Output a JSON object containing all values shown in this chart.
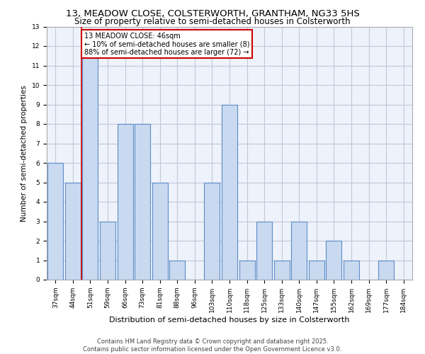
{
  "title1": "13, MEADOW CLOSE, COLSTERWORTH, GRANTHAM, NG33 5HS",
  "title2": "Size of property relative to semi-detached houses in Colsterworth",
  "xlabel": "Distribution of semi-detached houses by size in Colsterworth",
  "ylabel": "Number of semi-detached properties",
  "categories": [
    "37sqm",
    "44sqm",
    "51sqm",
    "59sqm",
    "66sqm",
    "73sqm",
    "81sqm",
    "88sqm",
    "96sqm",
    "103sqm",
    "110sqm",
    "118sqm",
    "125sqm",
    "133sqm",
    "140sqm",
    "147sqm",
    "155sqm",
    "162sqm",
    "169sqm",
    "177sqm",
    "184sqm"
  ],
  "values": [
    6,
    5,
    12,
    3,
    8,
    8,
    5,
    1,
    0,
    5,
    9,
    1,
    3,
    1,
    3,
    1,
    2,
    1,
    0,
    1,
    0
  ],
  "bar_color": "#c9d9f0",
  "bar_edge_color": "#5b8dc8",
  "grid_color": "#c0c8d8",
  "background_color": "#eef2fa",
  "annotation_box_color": "#ffffff",
  "annotation_border_color": "#cc0000",
  "annotation_text": "13 MEADOW CLOSE: 46sqm\n← 10% of semi-detached houses are smaller (8)\n88% of semi-detached houses are larger (72) →",
  "red_line_x": 1.5,
  "ylim": [
    0,
    13
  ],
  "yticks": [
    0,
    1,
    2,
    3,
    4,
    5,
    6,
    7,
    8,
    9,
    10,
    11,
    12,
    13
  ],
  "footer1": "Contains HM Land Registry data © Crown copyright and database right 2025.",
  "footer2": "Contains public sector information licensed under the Open Government Licence v3.0.",
  "title1_fontsize": 9.5,
  "title2_fontsize": 8.5,
  "annotation_fontsize": 7,
  "footer_fontsize": 6,
  "xlabel_fontsize": 8,
  "ylabel_fontsize": 7.5,
  "tick_fontsize": 6.5
}
